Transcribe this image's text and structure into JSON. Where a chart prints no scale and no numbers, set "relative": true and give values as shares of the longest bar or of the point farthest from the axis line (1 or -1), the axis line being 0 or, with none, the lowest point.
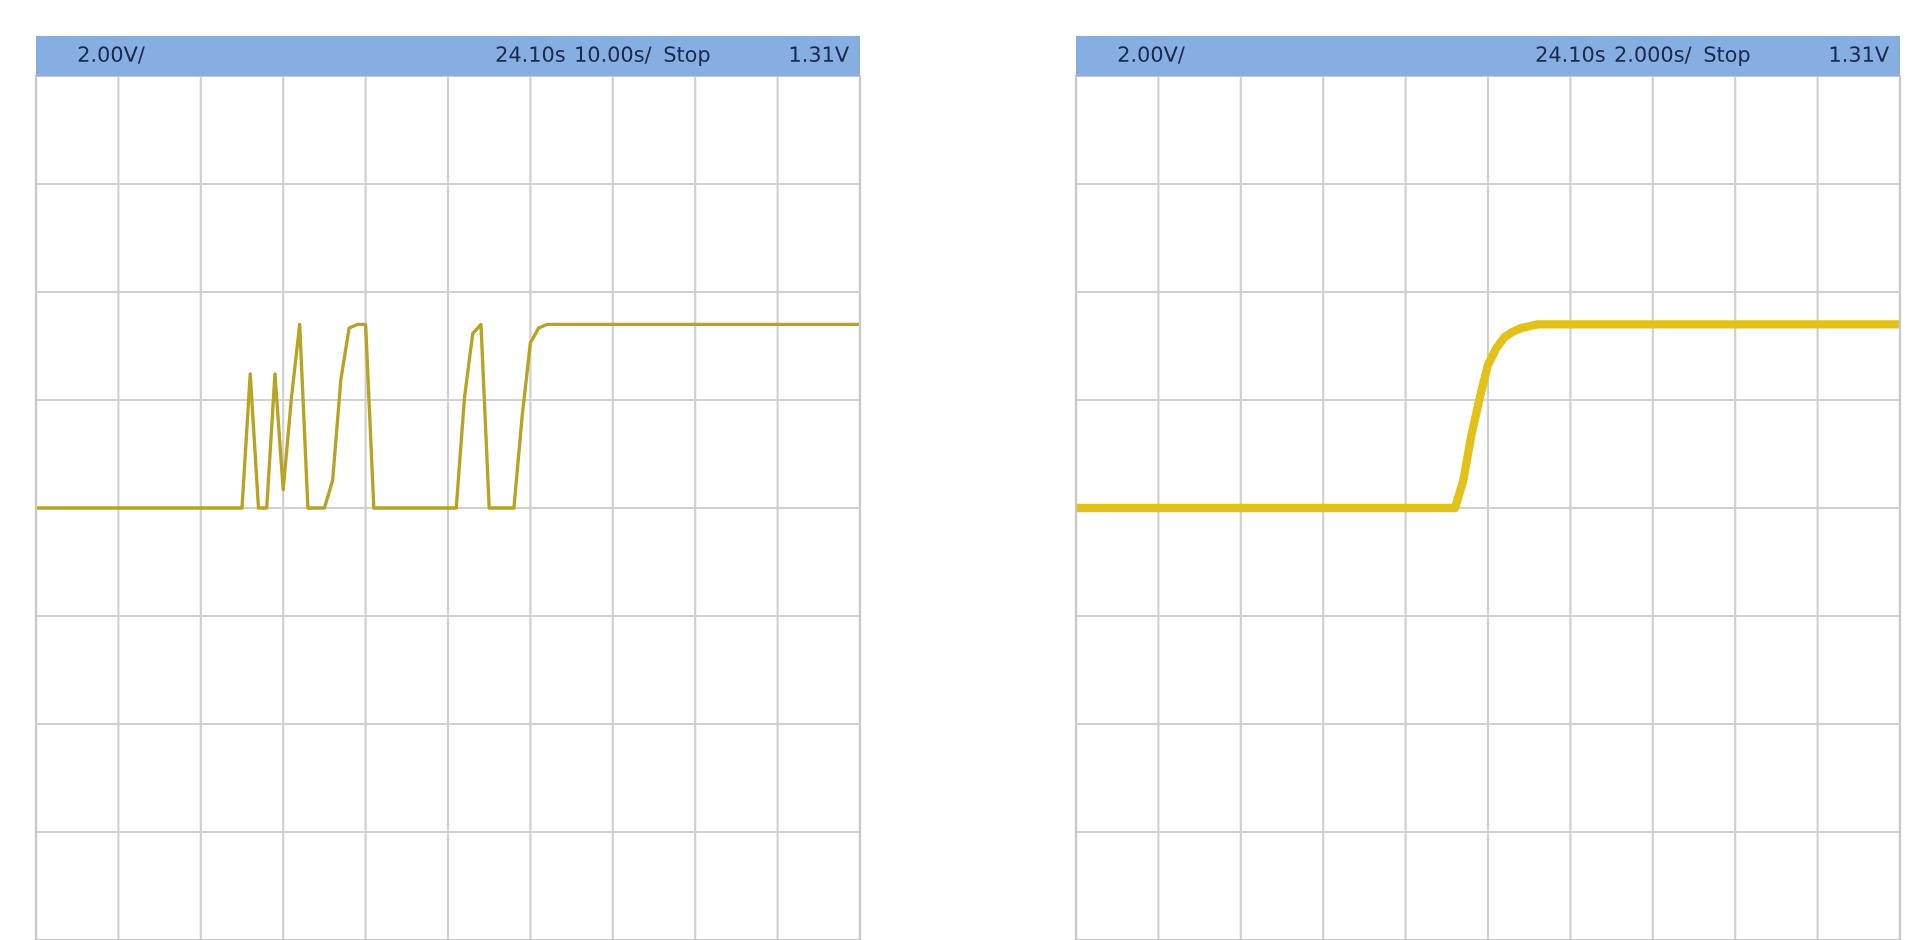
{
  "chart_data": [
    {
      "type": "line",
      "relative": true,
      "grid": true,
      "annotations": [
        "2.00V/",
        "24.10s",
        "10.00s/",
        "Stop",
        "1.31V"
      ],
      "categories": [
        null,
        null,
        null,
        null,
        null,
        null,
        null,
        null,
        null,
        null,
        null,
        null,
        null,
        null,
        null,
        null,
        null,
        null,
        null,
        null,
        null,
        null,
        null,
        null,
        null,
        null,
        null,
        null,
        null,
        null,
        null,
        null,
        null,
        null,
        null,
        null,
        null,
        null,
        null,
        null,
        null,
        null,
        null,
        null,
        null,
        null,
        null,
        null,
        null,
        null,
        null,
        null,
        null,
        null,
        null,
        null,
        null,
        null,
        null,
        null,
        null,
        null,
        null,
        null,
        null,
        null,
        null,
        null,
        null,
        null,
        null,
        null,
        null,
        null,
        null,
        null,
        null,
        null,
        null,
        null,
        null,
        null,
        null,
        null,
        null,
        null,
        null,
        null,
        null,
        null,
        null,
        null,
        null,
        null,
        null,
        null,
        null,
        null,
        null,
        null,
        null
      ],
      "series": [
        {
          "color": "#b8a324",
          "values": [
            0,
            0,
            0,
            0,
            0,
            0,
            0,
            0,
            0,
            0,
            0,
            0,
            0,
            0,
            0,
            0,
            0,
            0,
            0,
            0,
            0,
            0,
            0,
            0,
            0,
            0,
            0.73,
            0,
            0,
            0.73,
            0.1,
            0.6,
            1,
            0,
            0,
            0,
            0.15,
            0.7,
            0.98,
            1,
            1,
            0,
            0,
            0,
            0,
            0,
            0,
            0,
            0,
            0,
            0,
            0,
            0.6,
            0.95,
            1,
            0,
            0,
            0,
            0,
            0.5,
            0.9,
            0.98,
            1,
            1,
            1,
            1,
            1,
            1,
            1,
            1,
            1,
            1,
            1,
            1,
            1,
            1,
            1,
            1,
            1,
            1,
            1,
            1,
            1,
            1,
            1,
            1,
            1,
            1,
            1,
            1,
            1,
            1,
            1,
            1,
            1,
            1,
            1,
            1,
            1,
            1,
            1
          ]
        }
      ]
    },
    {
      "type": "line",
      "relative": true,
      "grid": true,
      "annotations": [
        "2.00V/",
        "24.10s",
        "2.000s/",
        "Stop",
        "1.31V"
      ],
      "categories": [
        null,
        null,
        null,
        null,
        null,
        null,
        null,
        null,
        null,
        null,
        null,
        null,
        null,
        null,
        null,
        null,
        null,
        null,
        null,
        null,
        null,
        null,
        null,
        null,
        null,
        null,
        null,
        null,
        null,
        null,
        null,
        null,
        null,
        null,
        null,
        null,
        null,
        null,
        null,
        null,
        null,
        null,
        null,
        null,
        null,
        null,
        null,
        null,
        null,
        null,
        null,
        null,
        null,
        null,
        null,
        null,
        null,
        null,
        null,
        null,
        null,
        null,
        null,
        null,
        null,
        null,
        null,
        null,
        null,
        null,
        null,
        null,
        null,
        null,
        null,
        null,
        null,
        null,
        null,
        null,
        null,
        null,
        null,
        null,
        null,
        null,
        null,
        null,
        null,
        null,
        null,
        null,
        null,
        null,
        null,
        null,
        null,
        null,
        null,
        null,
        null
      ],
      "series": [
        {
          "color": "#e2c21a",
          "values": [
            0,
            0,
            0,
            0,
            0,
            0,
            0,
            0,
            0,
            0,
            0,
            0,
            0,
            0,
            0,
            0,
            0,
            0,
            0,
            0,
            0,
            0,
            0,
            0,
            0,
            0,
            0,
            0,
            0,
            0,
            0,
            0,
            0,
            0,
            0,
            0,
            0,
            0,
            0,
            0,
            0,
            0,
            0,
            0,
            0,
            0,
            0,
            0.15,
            0.4,
            0.6,
            0.78,
            0.87,
            0.93,
            0.96,
            0.98,
            0.99,
            1,
            1,
            1,
            1,
            1,
            1,
            1,
            1,
            1,
            1,
            1,
            1,
            1,
            1,
            1,
            1,
            1,
            1,
            1,
            1,
            1,
            1,
            1,
            1,
            1,
            1,
            1,
            1,
            1,
            1,
            1,
            1,
            1,
            1,
            1,
            1,
            1,
            1,
            1,
            1,
            1,
            1,
            1,
            1,
            1
          ]
        }
      ]
    }
  ]
}
